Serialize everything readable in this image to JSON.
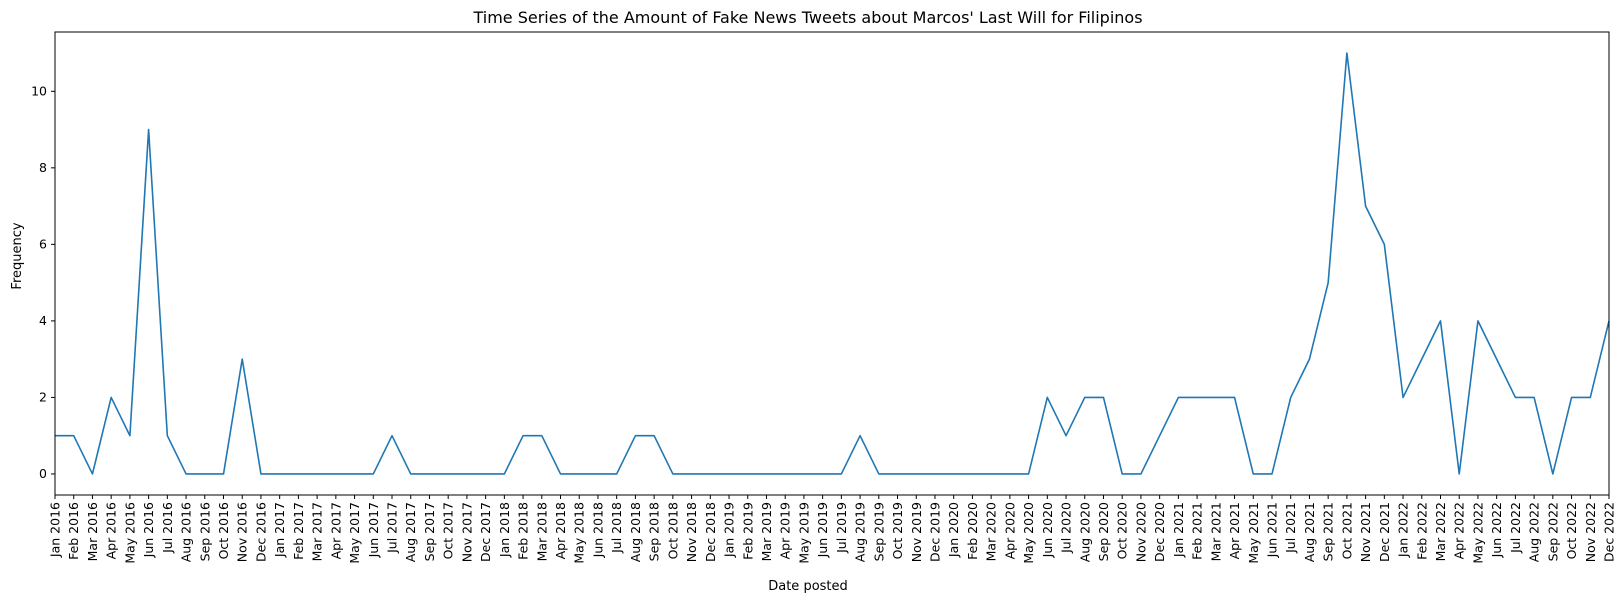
{
  "chart_data": {
    "type": "line",
    "title": "Time Series of the Amount of Fake News Tweets about Marcos' Last Will for Filipinos",
    "xlabel": "Date posted",
    "ylabel": "Frequency",
    "ylim": [
      -0.55,
      11.55
    ],
    "yticks": [
      0,
      2,
      4,
      6,
      8,
      10
    ],
    "grid": false,
    "line_color": "#1f77b4",
    "x": [
      "Jan 2016",
      "Feb 2016",
      "Mar 2016",
      "Apr 2016",
      "May 2016",
      "Jun 2016",
      "Jul 2016",
      "Aug 2016",
      "Sep 2016",
      "Oct 2016",
      "Nov 2016",
      "Dec 2016",
      "Jan 2017",
      "Feb 2017",
      "Mar 2017",
      "Apr 2017",
      "May 2017",
      "Jun 2017",
      "Jul 2017",
      "Aug 2017",
      "Sep 2017",
      "Oct 2017",
      "Nov 2017",
      "Dec 2017",
      "Jan 2018",
      "Feb 2018",
      "Mar 2018",
      "Apr 2018",
      "May 2018",
      "Jun 2018",
      "Jul 2018",
      "Aug 2018",
      "Sep 2018",
      "Oct 2018",
      "Nov 2018",
      "Dec 2018",
      "Jan 2019",
      "Feb 2019",
      "Mar 2019",
      "Apr 2019",
      "May 2019",
      "Jun 2019",
      "Jul 2019",
      "Aug 2019",
      "Sep 2019",
      "Oct 2019",
      "Nov 2019",
      "Dec 2019",
      "Jan 2020",
      "Feb 2020",
      "Mar 2020",
      "Apr 2020",
      "May 2020",
      "Jun 2020",
      "Jul 2020",
      "Aug 2020",
      "Sep 2020",
      "Oct 2020",
      "Nov 2020",
      "Dec 2020",
      "Jan 2021",
      "Feb 2021",
      "Mar 2021",
      "Apr 2021",
      "May 2021",
      "Jun 2021",
      "Jul 2021",
      "Aug 2021",
      "Sep 2021",
      "Oct 2021",
      "Nov 2021",
      "Dec 2021",
      "Jan 2022",
      "Feb 2022",
      "Mar 2022",
      "Apr 2022",
      "May 2022",
      "Jun 2022",
      "Jul 2022",
      "Aug 2022",
      "Sep 2022",
      "Oct 2022",
      "Nov 2022",
      "Dec 2022"
    ],
    "series": [
      {
        "values": [
          1,
          1,
          0,
          2,
          1,
          9,
          1,
          0,
          0,
          0,
          3,
          0,
          0,
          0,
          0,
          0,
          0,
          0,
          1,
          0,
          0,
          0,
          0,
          0,
          0,
          1,
          1,
          0,
          0,
          0,
          0,
          1,
          1,
          0,
          0,
          0,
          0,
          0,
          0,
          0,
          0,
          0,
          0,
          1,
          0,
          0,
          0,
          0,
          0,
          0,
          0,
          0,
          0,
          2,
          1,
          2,
          2,
          0,
          0,
          1,
          2,
          2,
          2,
          2,
          0,
          0,
          2,
          3,
          5,
          11,
          7,
          6,
          2,
          3,
          4,
          0,
          4,
          3,
          2,
          2,
          0,
          2,
          2,
          4
        ]
      }
    ]
  }
}
